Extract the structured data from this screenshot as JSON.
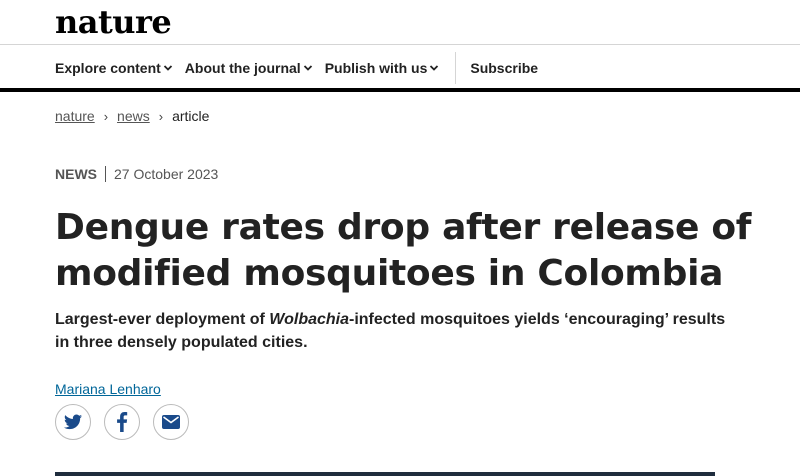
{
  "brand": {
    "logo_text": "nature"
  },
  "nav": {
    "items": [
      {
        "label": "Explore content"
      },
      {
        "label": "About the journal"
      },
      {
        "label": "Publish with us"
      }
    ],
    "subscribe_label": "Subscribe"
  },
  "breadcrumb": {
    "items": [
      "nature",
      "news"
    ],
    "current": "article",
    "separator": "›"
  },
  "article": {
    "type": "NEWS",
    "date": "27 October 2023",
    "title": "Dengue rates drop after release of modified mosquitoes in Colombia",
    "standfirst_before": "Largest-ever deployment of ",
    "standfirst_italic": "Wolbachia",
    "standfirst_after": "-infected mosquitoes yields ‘encouraging’ results in three densely populated cities.",
    "author": "Mariana Lenharo"
  },
  "share": {
    "icons": [
      "twitter-icon",
      "facebook-icon",
      "email-icon"
    ],
    "icon_color": "#1a4a8a"
  },
  "colors": {
    "link": "#006699",
    "text": "#222222",
    "muted": "#555555"
  }
}
